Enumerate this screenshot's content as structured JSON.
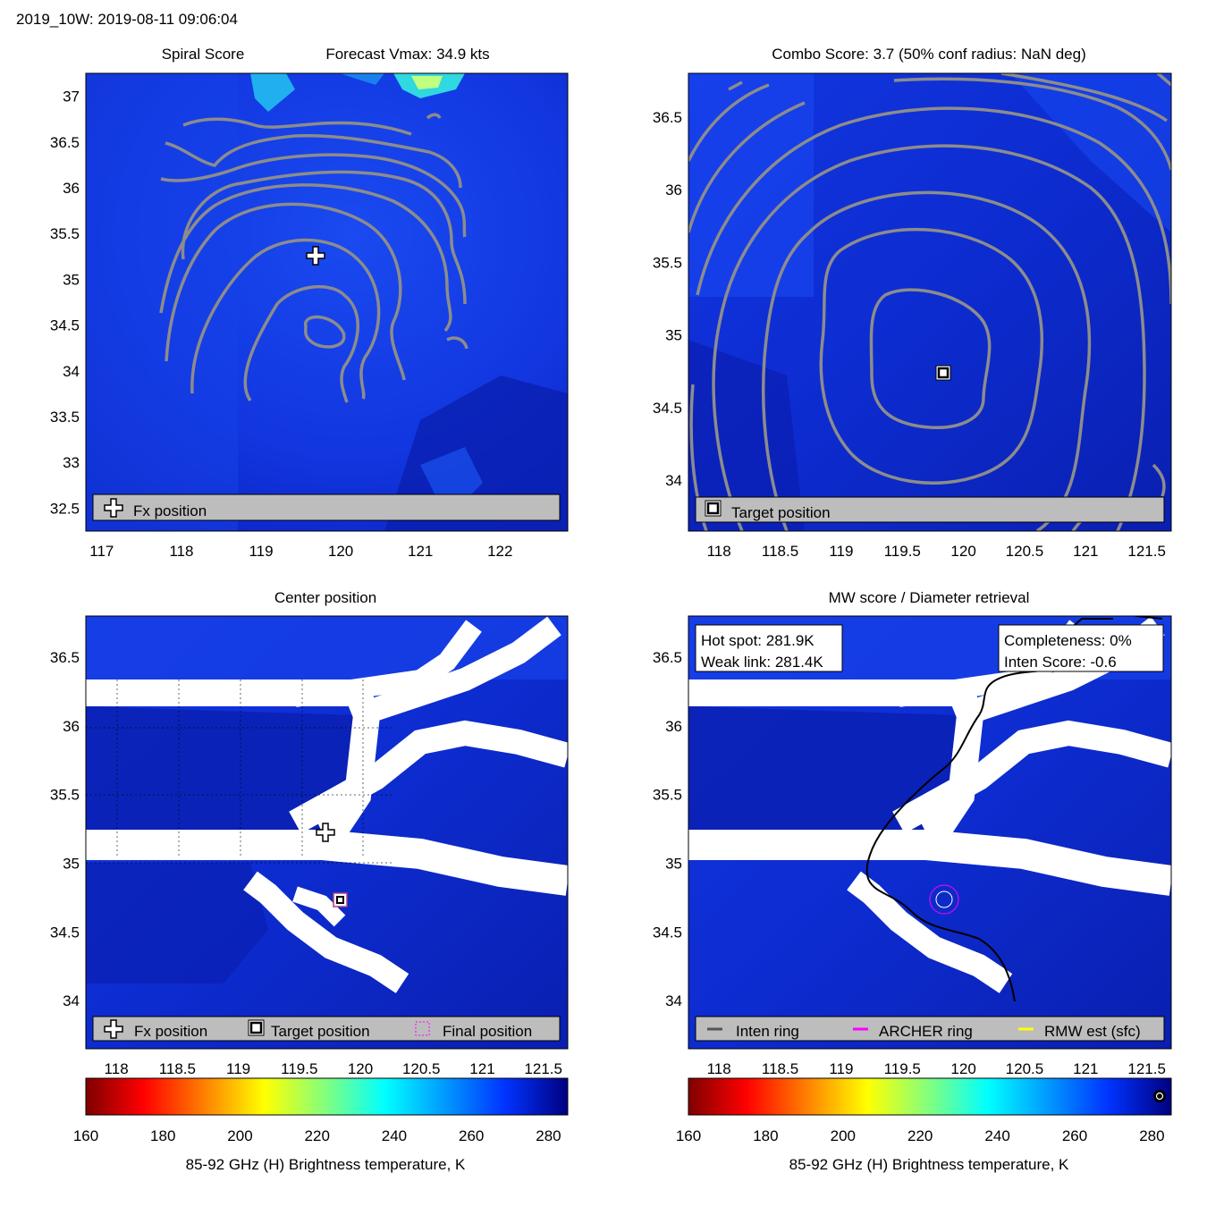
{
  "figure_title": "2019_10W: 2019-08-11 09:06:04",
  "colors": {
    "field_dark": "#0a20b8",
    "field_mid": "#1236e0",
    "field_light": "#1c52f4",
    "contour": "#8c8c8c",
    "legend_bg": "#bdbdbd",
    "final_marker": "#ff00ff",
    "rmw": "#ffff00",
    "inten": "#555555"
  },
  "panels": {
    "spiral": {
      "title_left": "Spiral Score",
      "title_right": "Forecast Vmax: 34.9 kts",
      "legend": {
        "fx": "Fx position"
      }
    },
    "combo": {
      "title": "Combo Score: 3.7  (50% conf radius: NaN deg)",
      "legend": {
        "target": "Target position"
      }
    },
    "center": {
      "title": "Center position",
      "legend": {
        "fx": "Fx position",
        "target": "Target position",
        "final": "Final position"
      }
    },
    "mw": {
      "title": "MW score / Diameter retrieval",
      "info_left": {
        "hot_spot": "Hot spot: 281.9K",
        "weak_link": "Weak link: 281.4K"
      },
      "info_right": {
        "completeness": "Completeness: 0%",
        "inten_score": "Inten Score: -0.6"
      },
      "legend": {
        "inten": "Inten ring",
        "archer": "ARCHER ring",
        "rmw": "RMW est (sfc)"
      }
    }
  },
  "colorbar": {
    "label": "85-92 GHz (H) Brightness temperature, K",
    "ticks": [
      "160",
      "180",
      "200",
      "220",
      "240",
      "260",
      "280"
    ],
    "range": [
      160,
      285
    ],
    "colormap": "jet"
  },
  "chart_data": [
    {
      "type": "heatmap",
      "name": "spiral-score",
      "title": "Spiral Score",
      "subtitle": "Forecast Vmax: 34.9 kts",
      "x_ticks": [
        "117",
        "118",
        "119",
        "120",
        "121",
        "122"
      ],
      "y_ticks": [
        "37",
        "36.5",
        "36",
        "35.5",
        "35",
        "34.5",
        "34",
        "33.5",
        "33",
        "32.5"
      ],
      "xlim": [
        116.8,
        122.85
      ],
      "ylim": [
        32.25,
        37.25
      ],
      "markers": [
        {
          "label": "Fx position",
          "lon": 119.7,
          "lat": 35.22
        }
      ]
    },
    {
      "type": "heatmap",
      "name": "combo-score",
      "title": "Combo Score: 3.7  (50% conf radius: NaN deg)",
      "x_ticks": [
        "118",
        "118.5",
        "119",
        "119.5",
        "120",
        "120.5",
        "121",
        "121.5"
      ],
      "y_ticks": [
        "36.5",
        "36",
        "35.5",
        "35",
        "34.5",
        "34"
      ],
      "xlim": [
        117.75,
        121.7
      ],
      "ylim": [
        33.65,
        36.8
      ],
      "markers": [
        {
          "label": "Target position",
          "lon": 119.82,
          "lat": 34.73
        }
      ]
    },
    {
      "type": "heatmap",
      "name": "center-position",
      "title": "Center position",
      "x_ticks": [
        "118",
        "118.5",
        "119",
        "119.5",
        "120",
        "120.5",
        "121",
        "121.5"
      ],
      "y_ticks": [
        "36.5",
        "36",
        "35.5",
        "35",
        "34.5",
        "34"
      ],
      "xlim": [
        117.75,
        121.7
      ],
      "ylim": [
        33.65,
        36.8
      ],
      "markers": [
        {
          "label": "Fx position",
          "lon": 119.7,
          "lat": 35.22
        },
        {
          "label": "Target position",
          "lon": 119.82,
          "lat": 34.73
        },
        {
          "label": "Final position",
          "lon": 119.82,
          "lat": 34.73
        }
      ]
    },
    {
      "type": "heatmap",
      "name": "mw-score",
      "title": "MW score / Diameter retrieval",
      "x_ticks": [
        "118",
        "118.5",
        "119",
        "119.5",
        "120",
        "120.5",
        "121",
        "121.5"
      ],
      "y_ticks": [
        "36.5",
        "36",
        "35.5",
        "35",
        "34.5",
        "34"
      ],
      "xlim": [
        117.75,
        121.7
      ],
      "ylim": [
        33.65,
        36.8
      ],
      "annotations": [
        "Hot spot: 281.9K",
        "Weak link: 281.4K",
        "Completeness: 0%",
        "Inten Score: -0.6"
      ],
      "markers": [
        {
          "label": "ARCHER ring",
          "lon": 119.82,
          "lat": 34.73
        }
      ]
    }
  ]
}
